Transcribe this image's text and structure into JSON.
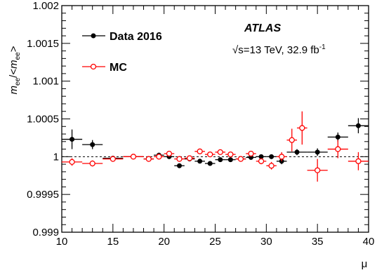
{
  "chart_data": {
    "type": "scatter",
    "xlabel": "μ",
    "ylabel": {
      "m": "m",
      "ee": "ee",
      "middle": "/<",
      "end": ">"
    },
    "xlim": [
      10,
      40
    ],
    "ylim": [
      0.999,
      1.002
    ],
    "x_ticks": [
      10,
      15,
      20,
      25,
      30,
      35,
      40
    ],
    "y_ticks": [
      {
        "value": 0.999,
        "label": "0.999"
      },
      {
        "value": 0.9995,
        "label": "0.9995"
      },
      {
        "value": 1.0,
        "label": "1"
      },
      {
        "value": 1.0005,
        "label": "1.0005"
      },
      {
        "value": 1.001,
        "label": "1.001"
      },
      {
        "value": 1.0015,
        "label": "1.0015"
      },
      {
        "value": 1.002,
        "label": "1.002"
      }
    ],
    "reference_line": 1.0,
    "legend_position": "top-left",
    "annotations": {
      "experiment": "ATLAS",
      "sqrt_symbol": "√",
      "energy": "s=13 TeV, 32.9 fb",
      "lumi_superscript": "-1"
    },
    "series": [
      {
        "name": "Data 2016",
        "color": "#000000",
        "marker": "filled-circle",
        "points": [
          {
            "x": 11.0,
            "xerr": 1.0,
            "y": 1.00023,
            "yerr": 0.00013
          },
          {
            "x": 13.0,
            "xerr": 1.0,
            "y": 1.00016,
            "yerr": 6e-05
          },
          {
            "x": 15.0,
            "xerr": 1.0,
            "y": 0.99998,
            "yerr": 2e-05
          },
          {
            "x": 17.0,
            "xerr": 1.0,
            "y": 1.0,
            "yerr": 2e-05
          },
          {
            "x": 18.5,
            "xerr": 0.5,
            "y": 0.99997,
            "yerr": 2e-05
          },
          {
            "x": 19.5,
            "xerr": 0.5,
            "y": 1.00002,
            "yerr": 2e-05
          },
          {
            "x": 20.5,
            "xerr": 0.5,
            "y": 1.0,
            "yerr": 2e-05
          },
          {
            "x": 21.5,
            "xerr": 0.5,
            "y": 0.99988,
            "yerr": 2e-05
          },
          {
            "x": 22.5,
            "xerr": 0.5,
            "y": 0.99997,
            "yerr": 2e-05
          },
          {
            "x": 23.5,
            "xerr": 0.5,
            "y": 0.99994,
            "yerr": 2e-05
          },
          {
            "x": 24.5,
            "xerr": 0.5,
            "y": 0.99991,
            "yerr": 2e-05
          },
          {
            "x": 25.5,
            "xerr": 0.5,
            "y": 0.99996,
            "yerr": 2e-05
          },
          {
            "x": 26.5,
            "xerr": 0.5,
            "y": 0.99996,
            "yerr": 2e-05
          },
          {
            "x": 27.5,
            "xerr": 0.5,
            "y": 0.99997,
            "yerr": 2e-05
          },
          {
            "x": 28.5,
            "xerr": 0.5,
            "y": 0.99999,
            "yerr": 3e-05
          },
          {
            "x": 29.5,
            "xerr": 0.5,
            "y": 1.0,
            "yerr": 3e-05
          },
          {
            "x": 30.5,
            "xerr": 0.5,
            "y": 1.0,
            "yerr": 3e-05
          },
          {
            "x": 31.5,
            "xerr": 0.5,
            "y": 0.99994,
            "yerr": 4e-05
          },
          {
            "x": 33.0,
            "xerr": 1.0,
            "y": 1.00006,
            "yerr": 4e-05
          },
          {
            "x": 35.0,
            "xerr": 1.0,
            "y": 1.00006,
            "yerr": 5e-05
          },
          {
            "x": 37.0,
            "xerr": 1.0,
            "y": 1.00026,
            "yerr": 6e-05
          },
          {
            "x": 39.0,
            "xerr": 1.0,
            "y": 1.00041,
            "yerr": 0.0001
          }
        ]
      },
      {
        "name": "MC",
        "color": "#ff0000",
        "marker": "open-circle",
        "points": [
          {
            "x": 11.0,
            "xerr": 1.0,
            "y": 0.99993,
            "yerr": 5e-05
          },
          {
            "x": 13.0,
            "xerr": 1.0,
            "y": 0.99991,
            "yerr": 4e-05
          },
          {
            "x": 15.0,
            "xerr": 1.0,
            "y": 0.99997,
            "yerr": 2e-05
          },
          {
            "x": 17.0,
            "xerr": 1.0,
            "y": 1.0,
            "yerr": 2e-05
          },
          {
            "x": 18.5,
            "xerr": 0.5,
            "y": 0.99997,
            "yerr": 2e-05
          },
          {
            "x": 19.5,
            "xerr": 0.5,
            "y": 1.0,
            "yerr": 2e-05
          },
          {
            "x": 20.5,
            "xerr": 0.5,
            "y": 1.00004,
            "yerr": 2e-05
          },
          {
            "x": 21.5,
            "xerr": 0.5,
            "y": 0.99997,
            "yerr": 2e-05
          },
          {
            "x": 22.5,
            "xerr": 0.5,
            "y": 0.99998,
            "yerr": 2e-05
          },
          {
            "x": 23.5,
            "xerr": 0.5,
            "y": 1.00007,
            "yerr": 2e-05
          },
          {
            "x": 24.5,
            "xerr": 0.5,
            "y": 1.00003,
            "yerr": 2e-05
          },
          {
            "x": 25.5,
            "xerr": 0.5,
            "y": 1.00006,
            "yerr": 2e-05
          },
          {
            "x": 26.5,
            "xerr": 0.5,
            "y": 1.00003,
            "yerr": 2e-05
          },
          {
            "x": 27.5,
            "xerr": 0.5,
            "y": 0.99997,
            "yerr": 3e-05
          },
          {
            "x": 28.5,
            "xerr": 0.5,
            "y": 1.00004,
            "yerr": 3e-05
          },
          {
            "x": 29.5,
            "xerr": 0.5,
            "y": 0.99994,
            "yerr": 4e-05
          },
          {
            "x": 30.5,
            "xerr": 0.5,
            "y": 0.99988,
            "yerr": 5e-05
          },
          {
            "x": 31.5,
            "xerr": 0.5,
            "y": 1.0,
            "yerr": 6e-05
          },
          {
            "x": 32.5,
            "xerr": 0.5,
            "y": 1.00022,
            "yerr": 0.00015
          },
          {
            "x": 33.5,
            "xerr": 0.5,
            "y": 1.00038,
            "yerr": 0.00022
          },
          {
            "x": 35.0,
            "xerr": 1.0,
            "y": 0.99982,
            "yerr": 0.00015
          },
          {
            "x": 37.0,
            "xerr": 1.0,
            "y": 1.0001,
            "yerr": 0.00012
          },
          {
            "x": 39.0,
            "xerr": 1.0,
            "y": 0.99994,
            "yerr": 0.00012
          }
        ]
      }
    ]
  }
}
